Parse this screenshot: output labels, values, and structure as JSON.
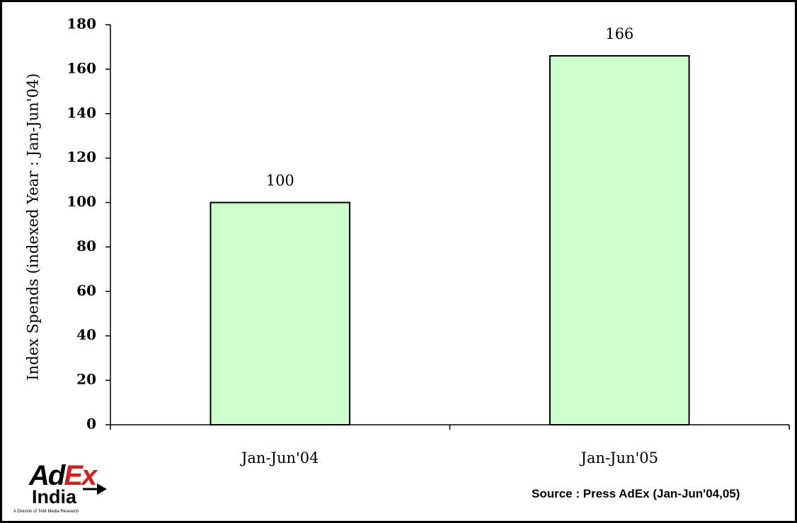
{
  "chart_data": {
    "type": "bar",
    "categories": [
      "Jan-Jun'04",
      "Jan-Jun'05"
    ],
    "values": [
      100,
      166
    ],
    "data_labels": [
      "100",
      "166"
    ],
    "title": "",
    "xlabel": "",
    "ylabel": "Index Spends (indexed Year : Jan-Jun'04)",
    "ylim": [
      0,
      180
    ],
    "yticks": [
      0,
      20,
      40,
      60,
      80,
      100,
      120,
      140,
      160,
      180
    ],
    "grid": false,
    "legend": "none",
    "bar_color": "#ccffcc",
    "bar_edge_color": "#000000"
  },
  "footer": {
    "source": "Source : Press AdEx (Jan-Jun'04,05)"
  },
  "logo": {
    "text_ad": "Ad",
    "text_ex": "Ex",
    "text_india": "India",
    "tagline": "A Division of TAM Media Research",
    "accent_color": "#d81e1e"
  }
}
